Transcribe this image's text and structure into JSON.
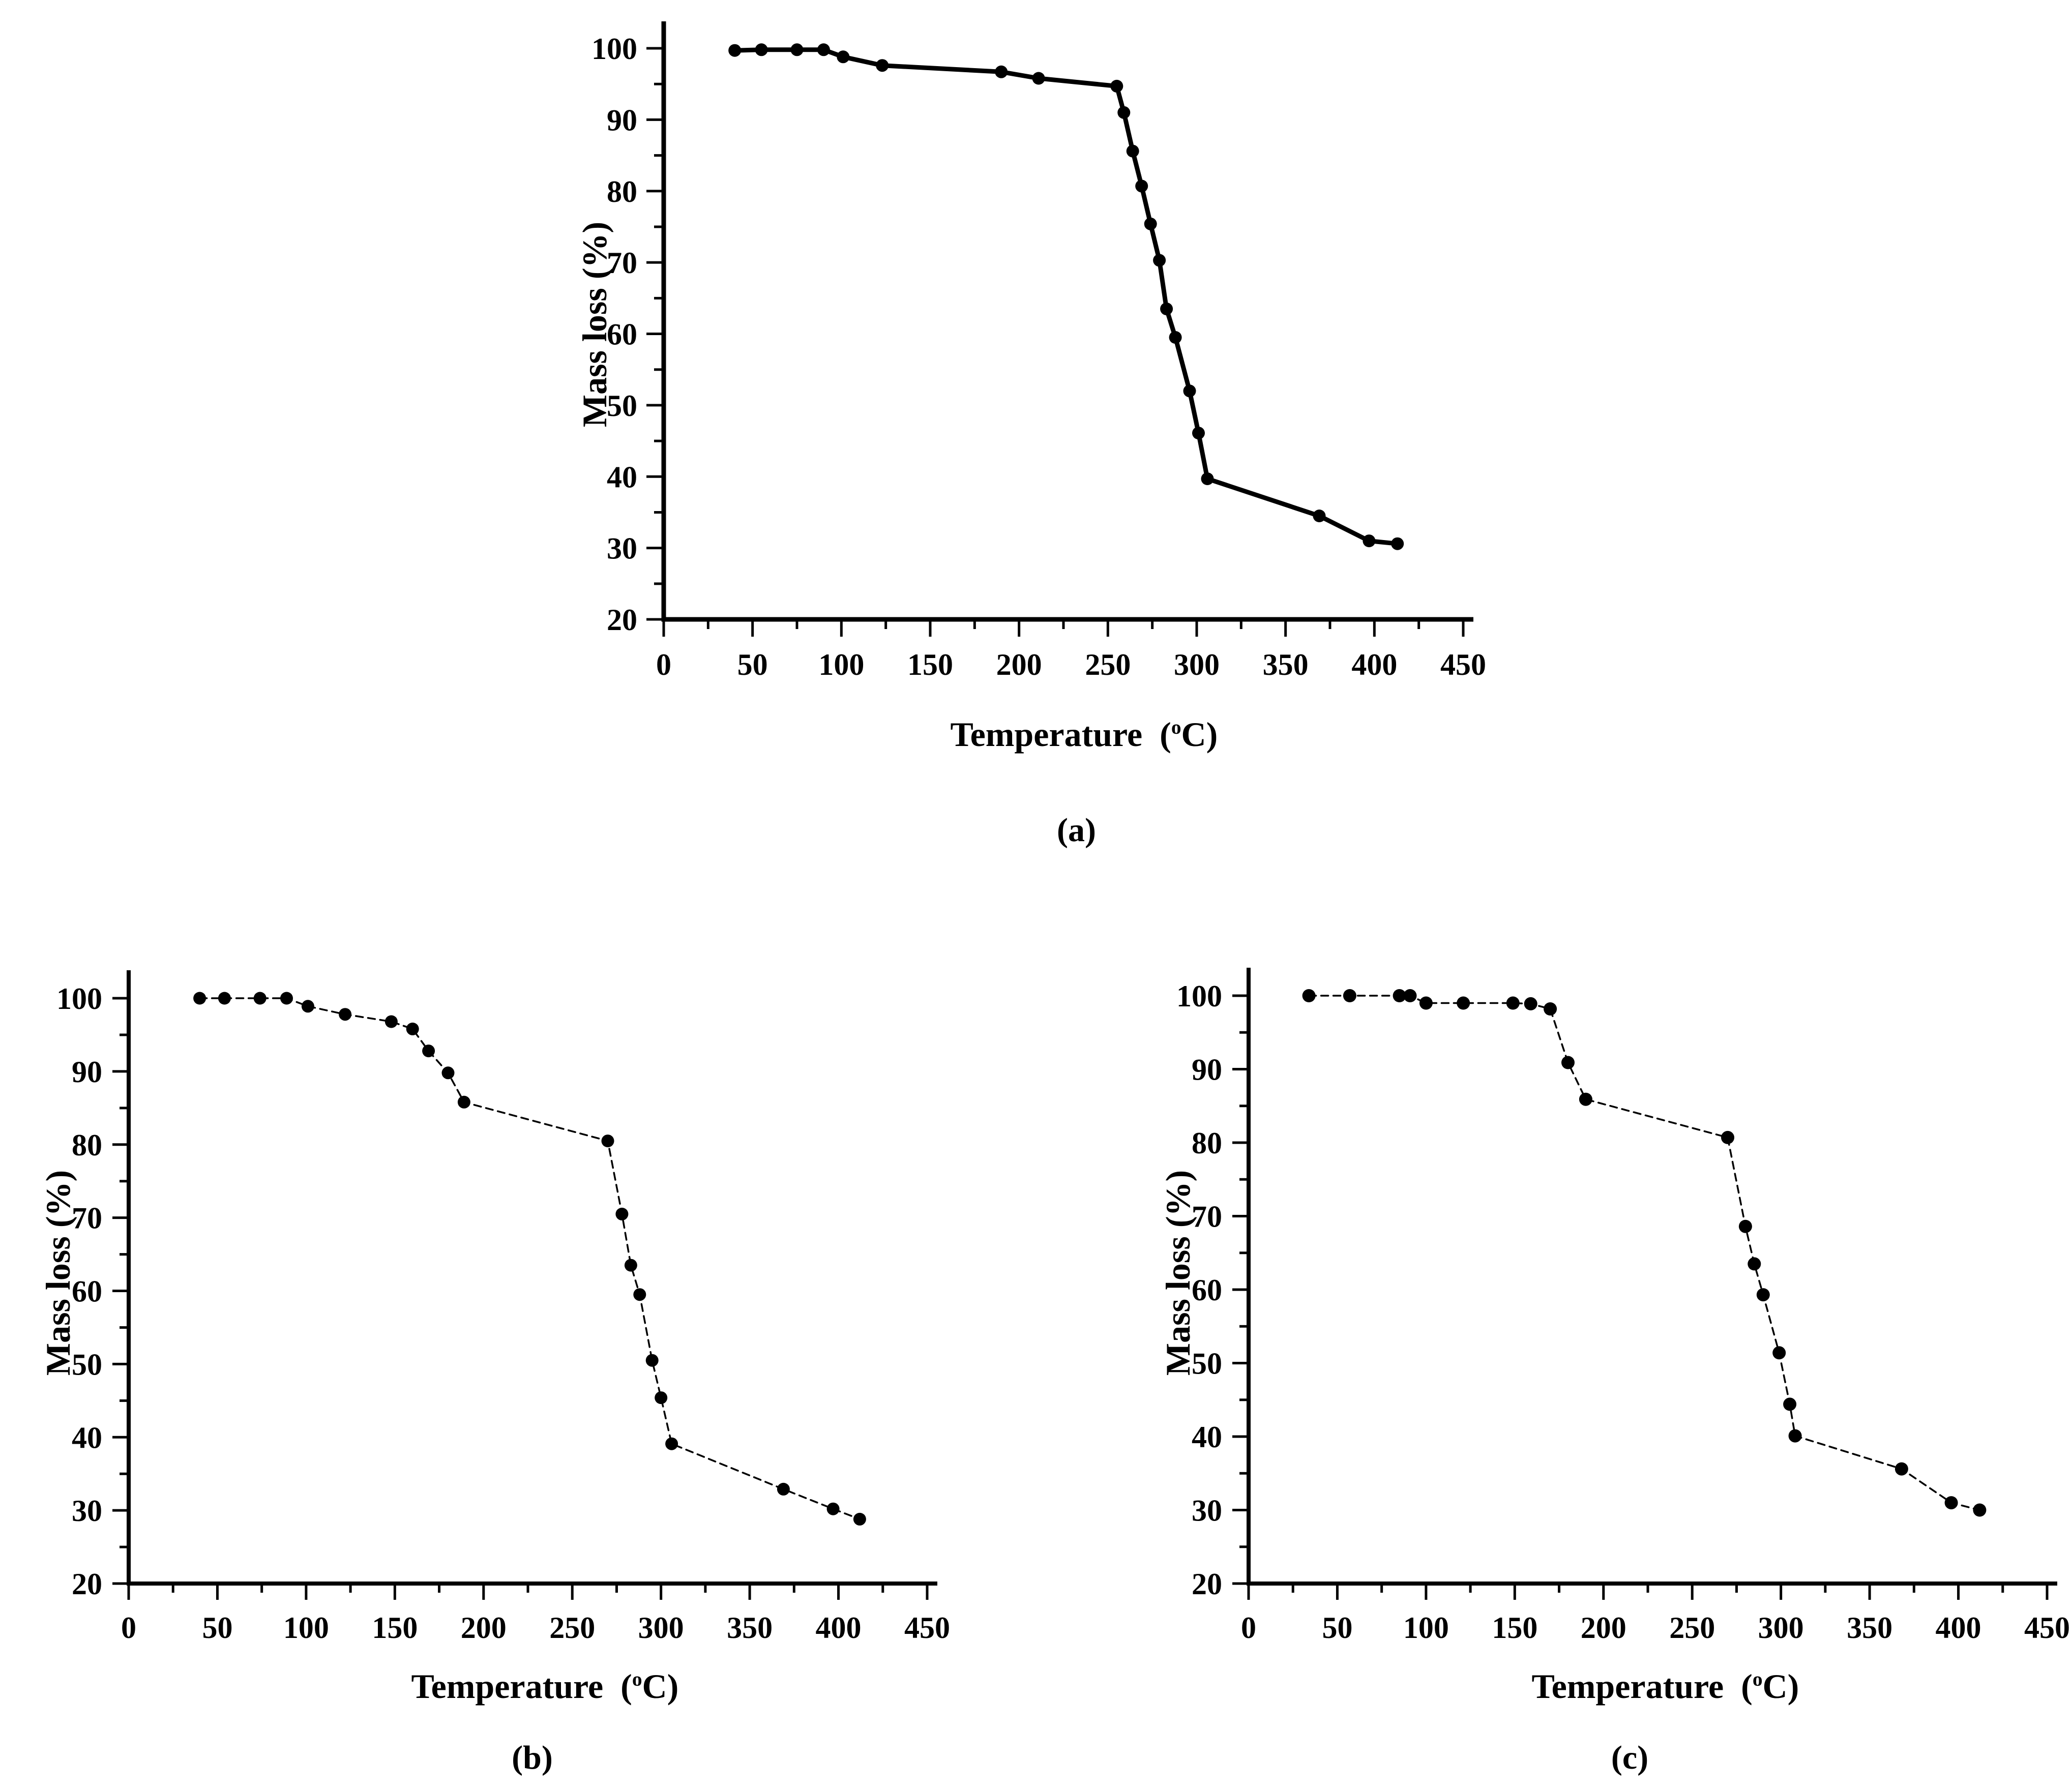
{
  "page": {
    "background": "#ffffff",
    "ink": "#000000"
  },
  "chart_data": [
    {
      "id": "a",
      "type": "line",
      "sublabel": "(a)",
      "ylabel": "Mass loss (%)",
      "xlabel_prefix": "Temperature  (",
      "xlabel_sup": "o",
      "xlabel_suffix": "C)",
      "xlim": [
        0,
        450
      ],
      "ylim": [
        20,
        100
      ],
      "x_major_ticks": [
        0,
        50,
        100,
        150,
        200,
        250,
        300,
        350,
        400,
        450
      ],
      "x_minor_ticks": [
        25,
        75,
        125,
        175,
        225,
        275,
        325,
        375,
        425
      ],
      "y_major_ticks": [
        20,
        30,
        40,
        50,
        60,
        70,
        80,
        90,
        100
      ],
      "y_minor_ticks": [
        25,
        35,
        45,
        55,
        65,
        75,
        85,
        95
      ],
      "grid": false,
      "legend": "none",
      "marker": "filled-circle",
      "line_style": "solid",
      "series_name": "mass-loss",
      "points": [
        [
          40,
          99.7
        ],
        [
          55,
          99.8
        ],
        [
          75,
          99.8
        ],
        [
          90,
          99.8
        ],
        [
          101,
          98.8
        ],
        [
          123,
          97.6
        ],
        [
          190,
          96.7
        ],
        [
          211,
          95.8
        ],
        [
          255,
          94.7
        ],
        [
          259,
          91.0
        ],
        [
          264,
          85.6
        ],
        [
          269,
          80.7
        ],
        [
          274,
          75.4
        ],
        [
          279,
          70.3
        ],
        [
          283,
          63.5
        ],
        [
          288,
          59.5
        ],
        [
          296,
          52.0
        ],
        [
          301,
          46.1
        ],
        [
          306,
          39.7
        ],
        [
          369,
          34.5
        ],
        [
          397,
          31.0
        ],
        [
          413,
          30.6
        ]
      ]
    },
    {
      "id": "b",
      "type": "line",
      "sublabel": "(b)",
      "ylabel": "Mass loss (%)",
      "xlabel_prefix": "Temperature  (",
      "xlabel_sup": "o",
      "xlabel_suffix": "C)",
      "xlim": [
        0,
        450
      ],
      "ylim": [
        20,
        100
      ],
      "x_major_ticks": [
        0,
        50,
        100,
        150,
        200,
        250,
        300,
        350,
        400,
        450
      ],
      "x_minor_ticks": [
        25,
        75,
        125,
        175,
        225,
        275,
        325,
        375,
        425
      ],
      "y_major_ticks": [
        20,
        30,
        40,
        50,
        60,
        70,
        80,
        90,
        100
      ],
      "y_minor_ticks": [
        25,
        35,
        45,
        55,
        65,
        75,
        85,
        95
      ],
      "grid": false,
      "legend": "none",
      "marker": "filled-circle",
      "line_style": "dashed",
      "series_name": "mass-loss",
      "points": [
        [
          40,
          100
        ],
        [
          54,
          100
        ],
        [
          74,
          100
        ],
        [
          89,
          100
        ],
        [
          101,
          98.9
        ],
        [
          122,
          97.8
        ],
        [
          148,
          96.8
        ],
        [
          160,
          95.8
        ],
        [
          169,
          92.8
        ],
        [
          180,
          89.8
        ],
        [
          189,
          85.8
        ],
        [
          270,
          80.5
        ],
        [
          278,
          70.5
        ],
        [
          283,
          63.5
        ],
        [
          288,
          59.5
        ],
        [
          295,
          50.5
        ],
        [
          300,
          45.4
        ],
        [
          306,
          39.1
        ],
        [
          369,
          32.9
        ],
        [
          397,
          30.2
        ],
        [
          412,
          28.8
        ]
      ]
    },
    {
      "id": "c",
      "type": "line",
      "sublabel": "(c)",
      "ylabel": "Mass loss (%)",
      "xlabel_prefix": "Temperature  (",
      "xlabel_sup": "o",
      "xlabel_suffix": "C)",
      "xlim": [
        0,
        450
      ],
      "ylim": [
        20,
        100
      ],
      "x_major_ticks": [
        0,
        50,
        100,
        150,
        200,
        250,
        300,
        350,
        400,
        450
      ],
      "x_minor_ticks": [
        25,
        75,
        125,
        175,
        225,
        275,
        325,
        375,
        425
      ],
      "y_major_ticks": [
        20,
        30,
        40,
        50,
        60,
        70,
        80,
        90,
        100
      ],
      "y_minor_ticks": [
        25,
        35,
        45,
        55,
        65,
        75,
        85,
        95
      ],
      "grid": false,
      "legend": "none",
      "marker": "filled-circle",
      "line_style": "dashed",
      "series_name": "mass-loss",
      "points": [
        [
          34,
          100
        ],
        [
          57,
          100
        ],
        [
          85,
          100
        ],
        [
          91,
          100
        ],
        [
          100,
          99.0
        ],
        [
          121,
          99.0
        ],
        [
          149,
          99.0
        ],
        [
          159,
          98.9
        ],
        [
          170,
          98.2
        ],
        [
          180,
          90.9
        ],
        [
          190,
          85.9
        ],
        [
          270,
          80.7
        ],
        [
          280,
          68.6
        ],
        [
          285,
          63.5
        ],
        [
          290,
          59.3
        ],
        [
          299,
          51.4
        ],
        [
          305,
          44.4
        ],
        [
          308,
          40.1
        ],
        [
          368,
          35.6
        ],
        [
          396,
          31.0
        ],
        [
          412,
          30.0
        ]
      ]
    }
  ]
}
